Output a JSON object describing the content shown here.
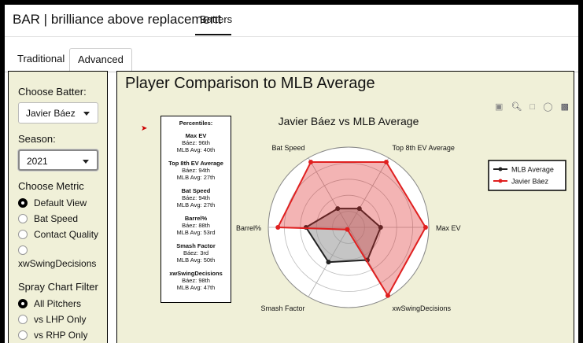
{
  "app": {
    "brand": "BAR | brilliance above replacement",
    "nav_tab": "Batters"
  },
  "tabs": [
    {
      "label": "Traditional"
    },
    {
      "label": "Advanced"
    }
  ],
  "sidebar": {
    "choose_batter_label": "Choose Batter:",
    "batter_value": "Javier Báez",
    "season_label": "Season:",
    "season_value": "2021",
    "metric_label": "Choose Metric",
    "metric_options": [
      "Default View",
      "Bat Speed",
      "Contact Quality",
      "xwSwingDecisions"
    ],
    "metric_selected": "Default View",
    "spray_label": "Spray Chart Filter",
    "spray_options": [
      "All Pitchers",
      "vs LHP Only",
      "vs RHP Only"
    ],
    "spray_selected": "All Pitchers"
  },
  "main": {
    "title": "Player Comparison to MLB Average"
  },
  "toolbar": {
    "icons": [
      "camera-icon",
      "zoom-icon",
      "box-select-icon",
      "lasso-icon",
      "plotly-logo-icon"
    ]
  },
  "percentiles": {
    "heading": "Percentiles:",
    "groups": [
      {
        "metric": "Max EV",
        "player": "Báez: 96th",
        "avg": "MLB Avg: 40th"
      },
      {
        "metric": "Top 8th EV Average",
        "player": "Báez: 94th",
        "avg": "MLB Avg: 27th"
      },
      {
        "metric": "Bat Speed",
        "player": "Báez: 94th",
        "avg": "MLB Avg: 27th"
      },
      {
        "metric": "Barrel%",
        "player": "Báez: 88th",
        "avg": "MLB Avg: 53rd"
      },
      {
        "metric": "Smash Factor",
        "player": "Báez: 3rd",
        "avg": "MLB Avg: 50th"
      },
      {
        "metric": "xwSwingDecisions",
        "player": "Báez: 98th",
        "avg": "MLB Avg: 47th"
      }
    ]
  },
  "chart_data": {
    "type": "radar",
    "title": "Javier Báez vs MLB Average",
    "axes": [
      "Max EV",
      "Top 8th EV Average",
      "Bat Speed",
      "Barrel%",
      "Smash Factor",
      "xwSwingDecisions"
    ],
    "range": [
      0,
      100
    ],
    "series": [
      {
        "name": "MLB Average",
        "values": [
          40,
          27,
          27,
          53,
          50,
          47
        ],
        "color": "#222222"
      },
      {
        "name": "Javier Báez",
        "values": [
          96,
          94,
          94,
          88,
          3,
          98
        ],
        "color": "#e02020"
      }
    ],
    "legend_position": "right"
  }
}
